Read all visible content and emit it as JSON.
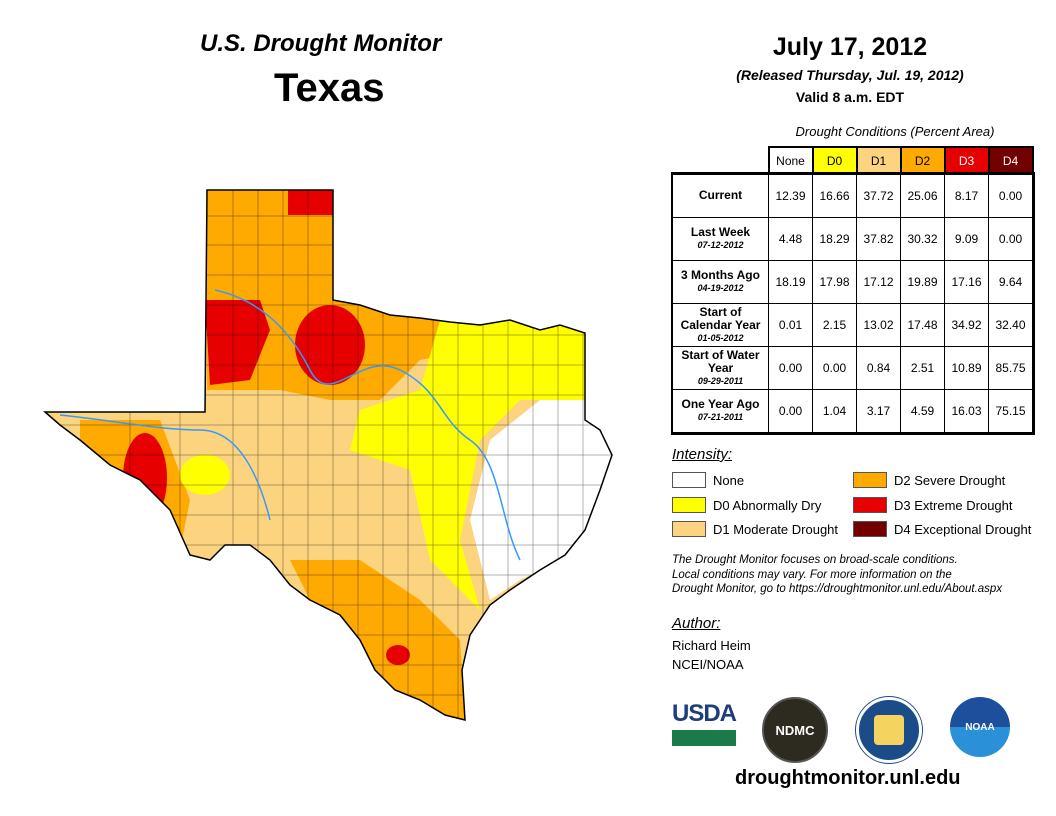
{
  "header": {
    "title": "U.S. Drought Monitor",
    "region": "Texas",
    "date": "July 17, 2012",
    "released": "(Released Thursday, Jul. 19, 2012)",
    "valid": "Valid 8 a.m. EDT"
  },
  "table": {
    "caption": "Drought Conditions (Percent Area)",
    "columns": [
      "None",
      "D0",
      "D1",
      "D2",
      "D3",
      "D4"
    ],
    "rows": [
      {
        "label": "Current",
        "date": "",
        "values": [
          "12.39",
          "16.66",
          "37.72",
          "25.06",
          "8.17",
          "0.00"
        ]
      },
      {
        "label": "Last Week",
        "date": "07-12-2012",
        "values": [
          "4.48",
          "18.29",
          "37.82",
          "30.32",
          "9.09",
          "0.00"
        ]
      },
      {
        "label": "3 Months Ago",
        "date": "04-19-2012",
        "values": [
          "18.19",
          "17.98",
          "17.12",
          "19.89",
          "17.16",
          "9.64"
        ]
      },
      {
        "label": "Start of Calendar Year",
        "date": "01-05-2012",
        "values": [
          "0.01",
          "2.15",
          "13.02",
          "17.48",
          "34.92",
          "32.40"
        ]
      },
      {
        "label": "Start of Water Year",
        "date": "09-29-2011",
        "values": [
          "0.00",
          "0.00",
          "0.84",
          "2.51",
          "10.89",
          "85.75"
        ]
      },
      {
        "label": "One Year Ago",
        "date": "07-21-2011",
        "values": [
          "0.00",
          "1.04",
          "3.17",
          "4.59",
          "16.03",
          "75.15"
        ]
      }
    ]
  },
  "legend": {
    "title": "Intensity:",
    "items": [
      {
        "label": "None",
        "color": "#ffffff"
      },
      {
        "label": "D0 Abnormally Dry",
        "color": "#ffff00"
      },
      {
        "label": "D1 Moderate Drought",
        "color": "#fcd37f"
      },
      {
        "label": "D2 Severe Drought",
        "color": "#ffaa00"
      },
      {
        "label": "D3 Extreme Drought",
        "color": "#e60000"
      },
      {
        "label": "D4 Exceptional Drought",
        "color": "#730000"
      }
    ]
  },
  "note": [
    "The Drought Monitor focuses on broad-scale conditions.",
    "Local conditions may vary. For more information on the",
    "Drought Monitor, go to https://droughtmonitor.unl.edu/About.aspx"
  ],
  "author": {
    "heading": "Author:",
    "name": "Richard Heim",
    "org": "NCEI/NOAA"
  },
  "logos": {
    "usda": "USDA",
    "ndmc": "NDMC",
    "noaa": "NOAA"
  },
  "footer": {
    "url": "droughtmonitor.unl.edu"
  }
}
